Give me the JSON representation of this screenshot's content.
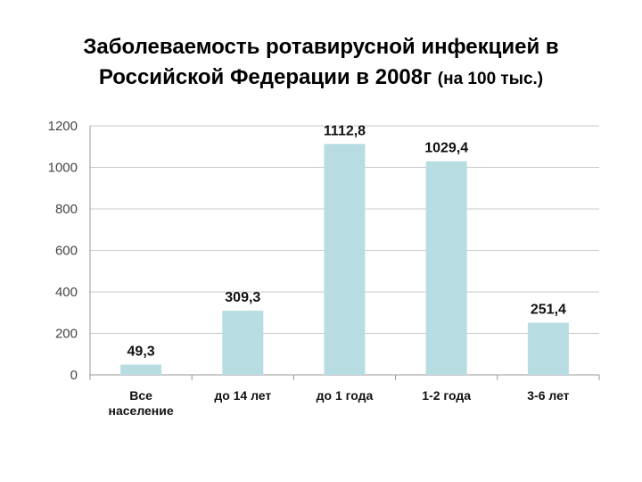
{
  "chart_data": {
    "type": "bar",
    "title_line1": "Заболеваемость ротавирусной инфекцией в",
    "title_line2": "Российской Федерации в 2008г",
    "title_note": "(на 100 тыс.)",
    "categories": [
      [
        "Все",
        "население"
      ],
      [
        "до 14 лет"
      ],
      [
        "до 1 года"
      ],
      [
        "1-2 года"
      ],
      [
        "3-6 лет"
      ]
    ],
    "values": [
      49.3,
      309.3,
      1112.8,
      1029.4,
      251.4
    ],
    "value_labels": [
      "49,3",
      "309,3",
      "1112,8",
      "1029,4",
      "251,4"
    ],
    "yticks": [
      "0",
      "200",
      "400",
      "600",
      "800",
      "1000",
      "1200"
    ],
    "ylim": [
      0,
      1200
    ],
    "grid": true,
    "bar_color": "#b7dde3",
    "grid_color": "#c8c8c8"
  }
}
